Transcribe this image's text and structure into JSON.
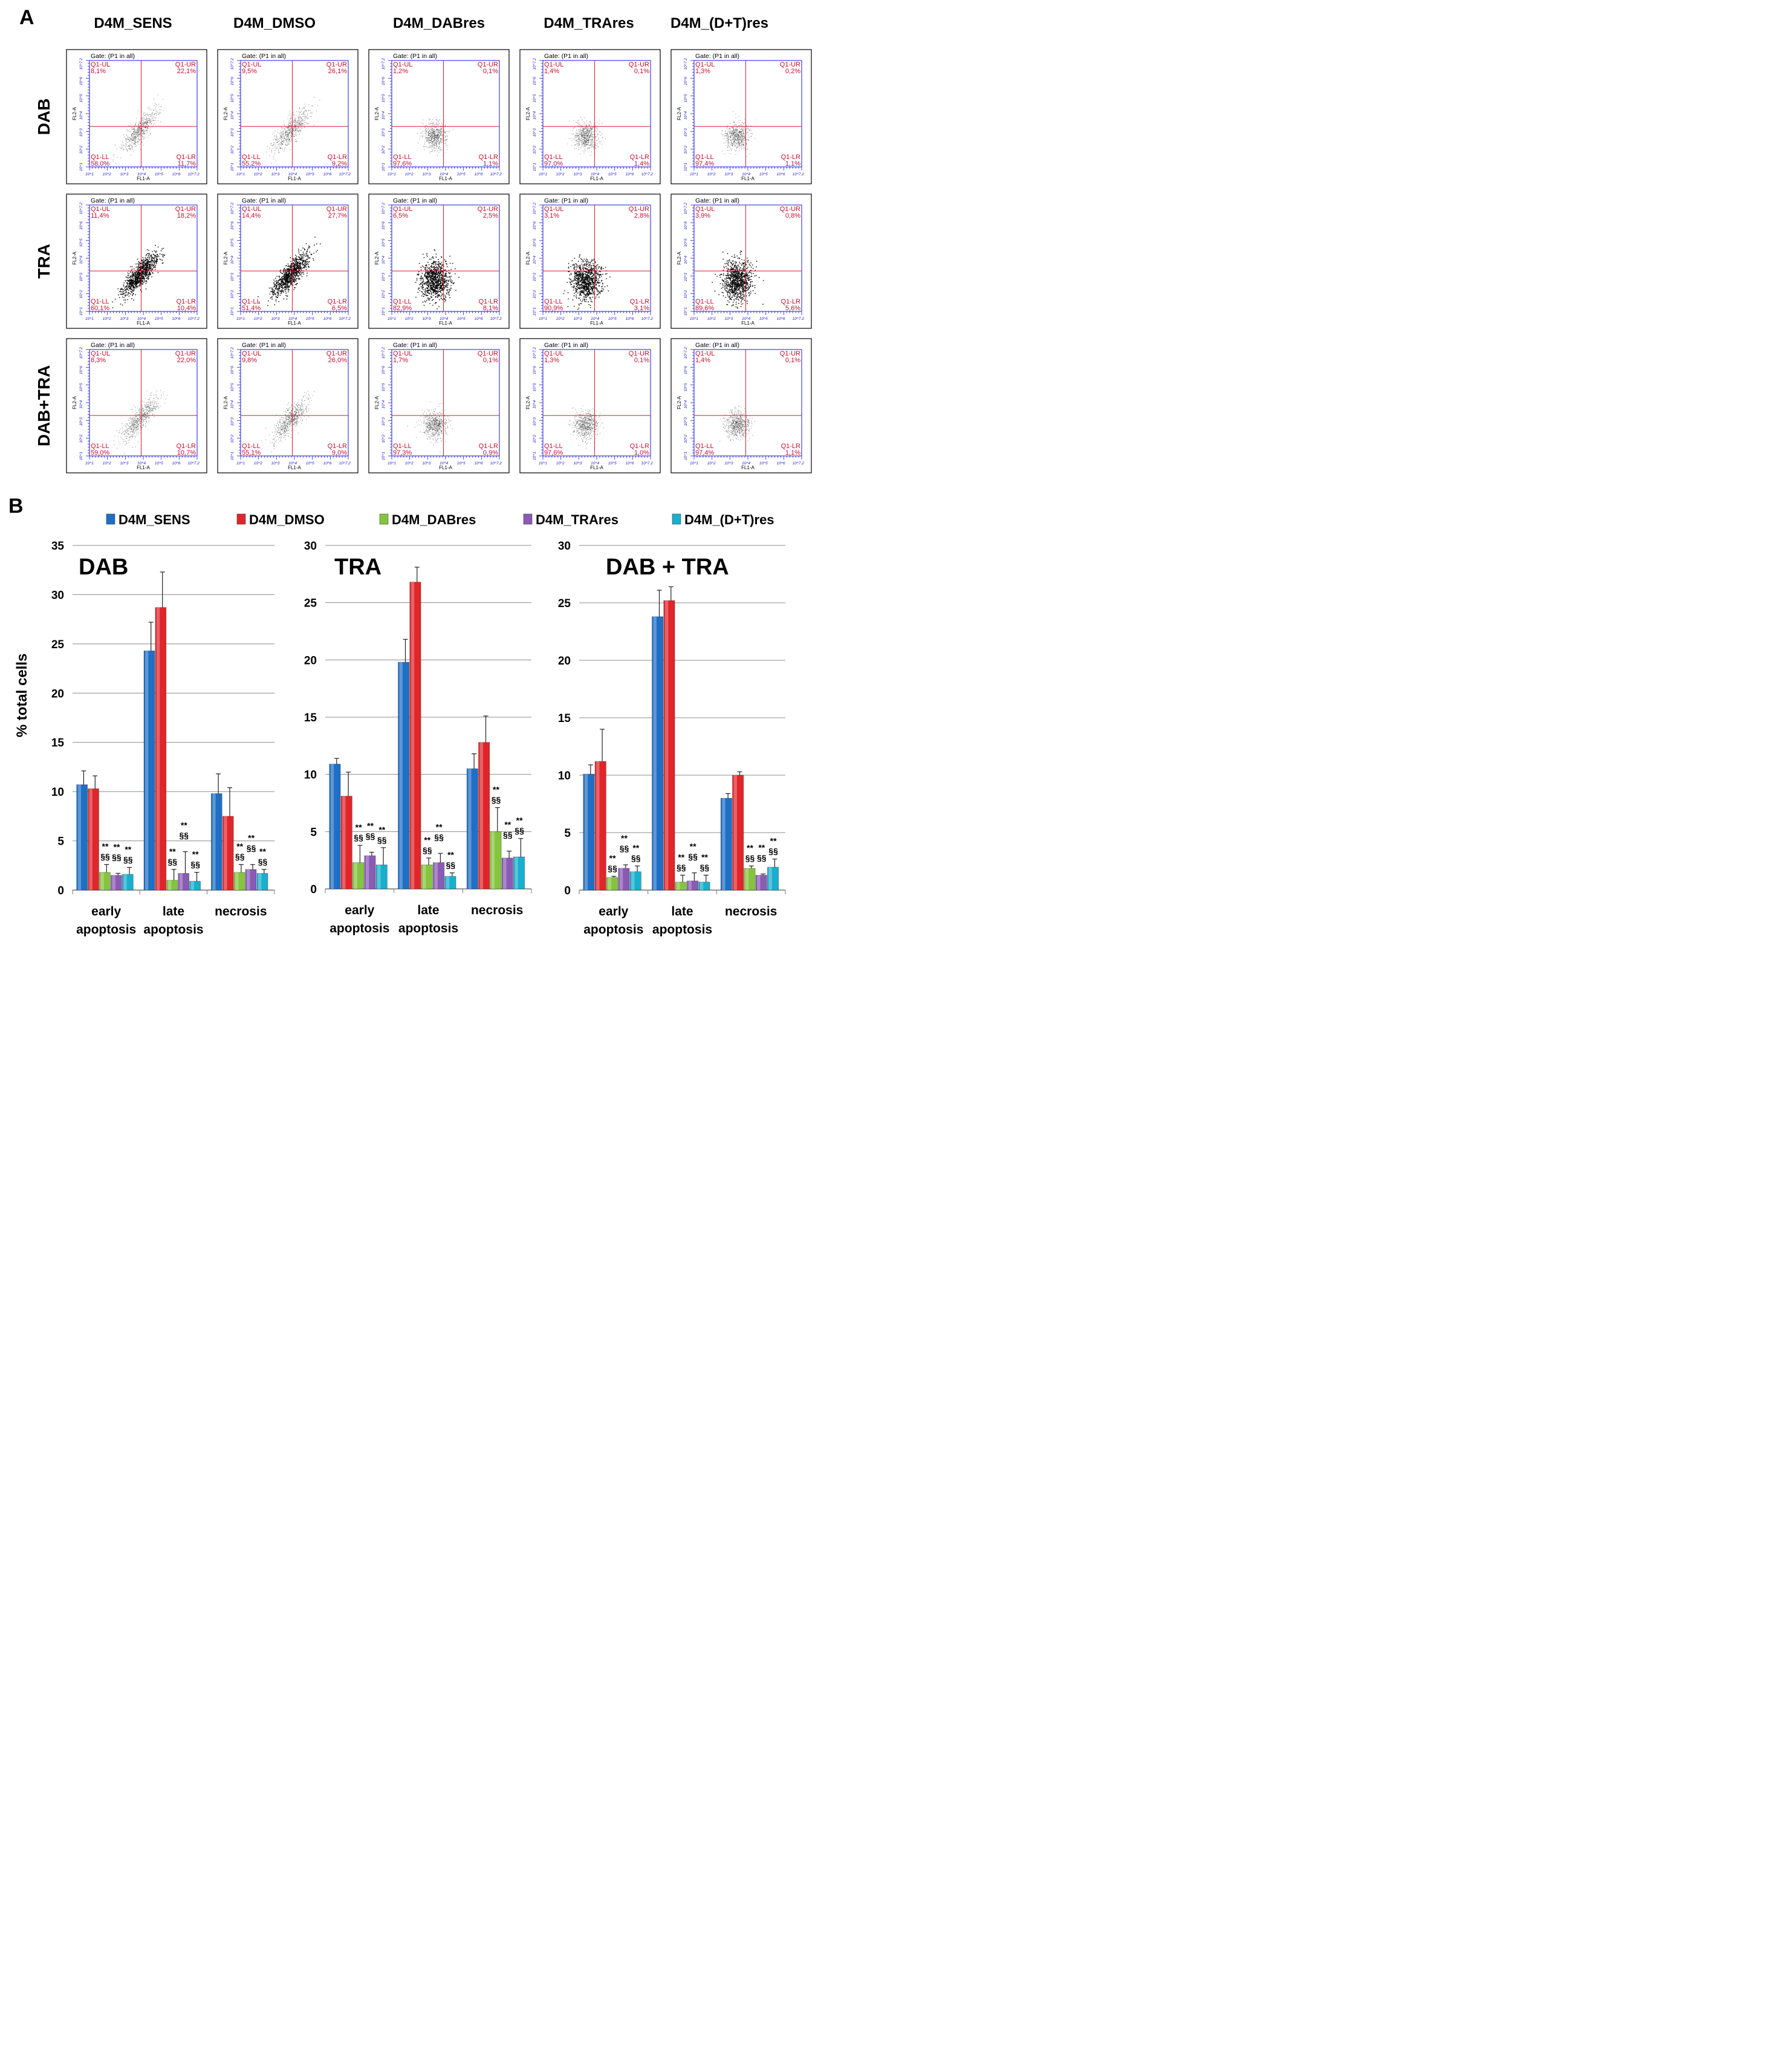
{
  "panel_a": {
    "letter": "A",
    "columns": [
      "D4M_SENS",
      "D4M_DMSO",
      "D4M_DABres",
      "D4M_TRAres",
      "D4M_(D+T)res"
    ],
    "rows": [
      "DAB",
      "TRA",
      "DAB+TRA"
    ],
    "gate_text": "Gate: (P1 in all)",
    "x_axis_label": "FL1-A",
    "y_axis_label": "FL2-A",
    "quadrant_names": [
      "Q1-UL",
      "Q1-UR",
      "Q1-LL",
      "Q1-LR"
    ],
    "log_ticks": [
      "10^1",
      "10^2",
      "10^3",
      "10^4",
      "10^5",
      "10^6",
      "10^7.2"
    ],
    "quadrant_values": [
      [
        [
          "8,1%",
          "22,1%",
          "58,0%",
          "11,7%"
        ],
        [
          "9,5%",
          "26,1%",
          "55,2%",
          "9,2%"
        ],
        [
          "1,2%",
          "0,1%",
          "97,6%",
          "1,1%"
        ],
        [
          "1,4%",
          "0,1%",
          "97,0%",
          "1,4%"
        ],
        [
          "1,3%",
          "0,2%",
          "97,4%",
          "1,1%"
        ]
      ],
      [
        [
          "11,4%",
          "18,2%",
          "60,1%",
          "10,4%"
        ],
        [
          "14,4%",
          "27,7%",
          "51,4%",
          "6,5%"
        ],
        [
          "6,5%",
          "2,5%",
          "82,9%",
          "8,1%"
        ],
        [
          "3,1%",
          "2,8%",
          "90,9%",
          "3,1%"
        ],
        [
          "3,9%",
          "0,8%",
          "89,6%",
          "5,6%"
        ]
      ],
      [
        [
          "8,3%",
          "22,0%",
          "59,0%",
          "10,7%"
        ],
        [
          "9,8%",
          "26,0%",
          "55,1%",
          "9,0%"
        ],
        [
          "1,7%",
          "0,1%",
          "97,3%",
          "0,9%"
        ],
        [
          "1,3%",
          "0,1%",
          "97,6%",
          "1,0%"
        ],
        [
          "1,4%",
          "0,1%",
          "97,4%",
          "1,1%"
        ]
      ]
    ]
  },
  "panel_b": {
    "letter": "B",
    "ylabel": "% total cells",
    "legend": [
      "D4M_SENS",
      "D4M_DMSO",
      "D4M_DABres",
      "D4M_TRAres",
      "D4M_(D+T)res"
    ],
    "colors": [
      "#1f6fc5",
      "#e0262b",
      "#86c440",
      "#8a5bb5",
      "#1aafcc"
    ]
  },
  "chart_data": [
    {
      "type": "bar",
      "title": "DAB",
      "categories": [
        "early apoptosis",
        "late apoptosis",
        "necrosis"
      ],
      "category_lines": [
        [
          "early",
          "apoptosis"
        ],
        [
          "late",
          "apoptosis"
        ],
        [
          "necrosis"
        ]
      ],
      "ylim": [
        0,
        35
      ],
      "yticks": [
        0,
        5,
        10,
        15,
        20,
        25,
        30,
        35
      ],
      "series": [
        {
          "name": "D4M_SENS",
          "values": [
            10.7,
            24.3,
            9.8
          ],
          "errors": [
            1.4,
            2.9,
            2.0
          ]
        },
        {
          "name": "D4M_DMSO",
          "values": [
            10.3,
            28.7,
            7.5
          ],
          "errors": [
            1.3,
            3.6,
            2.9
          ]
        },
        {
          "name": "D4M_DABres",
          "values": [
            1.8,
            1.0,
            1.8
          ],
          "errors": [
            0.8,
            1.1,
            0.8
          ]
        },
        {
          "name": "D4M_TRAres",
          "values": [
            1.5,
            1.7,
            2.1
          ],
          "errors": [
            0.2,
            2.2,
            0.5
          ]
        },
        {
          "name": "D4M_(D+T)res",
          "values": [
            1.6,
            0.9,
            1.7
          ],
          "errors": [
            0.7,
            0.9,
            0.4
          ]
        }
      ],
      "significance": [
        [
          null,
          null,
          [
            "**",
            "§§"
          ],
          [
            "**",
            "§§"
          ],
          [
            "**",
            "§§"
          ]
        ],
        [
          null,
          null,
          [
            "**",
            "§§"
          ],
          [
            "**",
            "§§"
          ],
          [
            "**",
            "§§"
          ]
        ],
        [
          null,
          null,
          [
            "**",
            "§§"
          ],
          [
            "**",
            "§§"
          ],
          [
            "**",
            "§§"
          ]
        ]
      ]
    },
    {
      "type": "bar",
      "title": "TRA",
      "categories": [
        "early apoptosis",
        "late apoptosis",
        "necrosis"
      ],
      "category_lines": [
        [
          "early",
          "apoptosis"
        ],
        [
          "late",
          "apoptosis"
        ],
        [
          "necrosis"
        ]
      ],
      "ylim": [
        0,
        30
      ],
      "yticks": [
        0,
        5,
        10,
        15,
        20,
        25,
        30
      ],
      "series": [
        {
          "name": "D4M_SENS",
          "values": [
            10.9,
            19.8,
            10.5
          ],
          "errors": [
            0.5,
            2.0,
            1.3
          ]
        },
        {
          "name": "D4M_DMSO",
          "values": [
            8.1,
            26.8,
            12.8
          ],
          "errors": [
            2.1,
            1.3,
            2.3
          ]
        },
        {
          "name": "D4M_DABres",
          "values": [
            2.3,
            2.1,
            5.0
          ],
          "errors": [
            1.5,
            0.6,
            2.1
          ]
        },
        {
          "name": "D4M_TRAres",
          "values": [
            2.9,
            2.3,
            2.7
          ],
          "errors": [
            0.3,
            0.8,
            0.6
          ]
        },
        {
          "name": "D4M_(D+T)res",
          "values": [
            2.1,
            1.1,
            2.8
          ],
          "errors": [
            1.5,
            0.3,
            1.6
          ]
        }
      ],
      "significance": [
        [
          null,
          null,
          [
            "**",
            "§§"
          ],
          [
            "**",
            "§§"
          ],
          [
            "**",
            "§§"
          ]
        ],
        [
          null,
          null,
          [
            "**",
            "§§"
          ],
          [
            "**",
            "§§"
          ],
          [
            "**",
            "§§"
          ]
        ],
        [
          null,
          null,
          [
            "**",
            "§§"
          ],
          [
            "**",
            "§§"
          ],
          [
            "**",
            "§§"
          ]
        ]
      ]
    },
    {
      "type": "bar",
      "title": "DAB + TRA",
      "categories": [
        "early apoptosis",
        "late apoptosis",
        "necrosis"
      ],
      "category_lines": [
        [
          "early",
          "apoptosis"
        ],
        [
          "late",
          "apoptosis"
        ],
        [
          "necrosis"
        ]
      ],
      "ylim": [
        0,
        30
      ],
      "yticks": [
        0,
        5,
        10,
        15,
        20,
        25,
        30
      ],
      "series": [
        {
          "name": "D4M_SENS",
          "values": [
            10.1,
            23.8,
            8.0
          ],
          "errors": [
            0.8,
            2.3,
            0.4
          ]
        },
        {
          "name": "D4M_DMSO",
          "values": [
            11.2,
            25.2,
            10.0
          ],
          "errors": [
            2.8,
            1.2,
            0.3
          ]
        },
        {
          "name": "D4M_DABres",
          "values": [
            1.1,
            0.7,
            1.9
          ],
          "errors": [
            0.1,
            0.6,
            0.2
          ]
        },
        {
          "name": "D4M_TRAres",
          "values": [
            1.9,
            0.8,
            1.3
          ],
          "errors": [
            0.3,
            0.7,
            0.1
          ]
        },
        {
          "name": "D4M_(D+T)res",
          "values": [
            1.6,
            0.7,
            2.0
          ],
          "errors": [
            0.5,
            0.6,
            0.7
          ]
        }
      ],
      "significance": [
        [
          null,
          null,
          [
            "**",
            "§§"
          ],
          [
            "**",
            "§§"
          ],
          [
            "**",
            "§§"
          ]
        ],
        [
          null,
          null,
          [
            "**",
            "§§"
          ],
          [
            "**",
            "§§"
          ],
          [
            "**",
            "§§"
          ]
        ],
        [
          null,
          null,
          [
            "**",
            "§§"
          ],
          [
            "**",
            "§§"
          ],
          [
            "**",
            "§§"
          ]
        ]
      ]
    }
  ]
}
